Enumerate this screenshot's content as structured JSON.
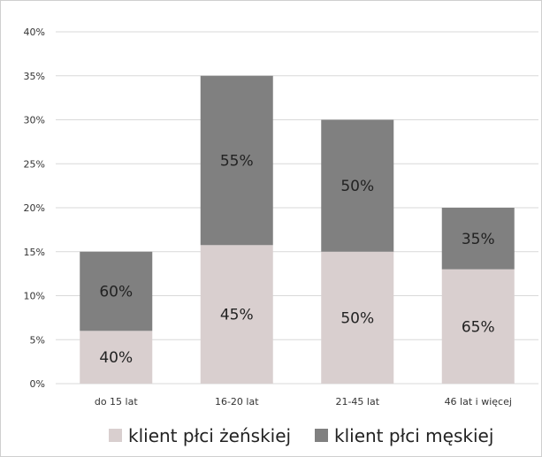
{
  "chart_data": {
    "type": "bar",
    "stacked": true,
    "categories": [
      "do 15 lat",
      "16-20 lat",
      "21-45 lat",
      "46 lat i więcej"
    ],
    "totals": [
      15,
      35,
      30,
      20
    ],
    "y_ticks": [
      "0%",
      "5%",
      "10%",
      "15%",
      "20%",
      "25%",
      "30%",
      "35%",
      "40%"
    ],
    "ylim": [
      0,
      40
    ],
    "grid": true,
    "legend_position": "bottom",
    "series": [
      {
        "name": "klient płci żeńskiej",
        "values": [
          6,
          15.75,
          15,
          13
        ],
        "labels": [
          "40%",
          "45%",
          "50%",
          "65%"
        ],
        "color": "#d9cfcf"
      },
      {
        "name": "klient płci męskiej",
        "values": [
          9,
          19.25,
          15,
          7
        ],
        "labels": [
          "60%",
          "55%",
          "50%",
          "35%"
        ],
        "color": "#808080"
      }
    ]
  }
}
